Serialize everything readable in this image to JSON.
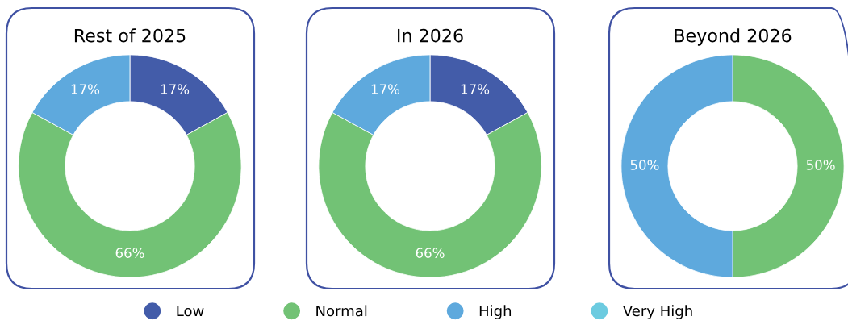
{
  "chart_data": [
    {
      "type": "donut",
      "title": "Rest of 2025",
      "categories": [
        "Low",
        "Normal",
        "High",
        "Very High"
      ],
      "values": [
        17,
        66,
        17,
        0
      ],
      "value_labels": [
        "17%",
        "66%",
        "17%",
        null
      ],
      "colors": [
        "#435ca9",
        "#72c275",
        "#5ea9dd",
        "#6ccbe0"
      ],
      "legend": "bottom"
    },
    {
      "type": "donut",
      "title": "In 2026",
      "categories": [
        null,
        null,
        null,
        null
      ],
      "values": [
        17,
        66,
        17,
        0
      ],
      "value_labels": [
        "17%",
        "66%",
        "17%",
        null
      ],
      "colors": [
        "#435ca9",
        "#72c275",
        "#5ea9dd",
        "#6ccbe0"
      ]
    },
    {
      "type": "donut",
      "title": "Beyond 2026",
      "categories": [
        null,
        null,
        null,
        null
      ],
      "values": [
        0,
        50,
        50,
        0
      ],
      "value_labels": [
        null,
        "50%",
        "50%",
        null
      ],
      "colors": [
        "#435ca9",
        "#72c275",
        "#5ea9dd",
        "#6ccbe0"
      ]
    }
  ]
}
